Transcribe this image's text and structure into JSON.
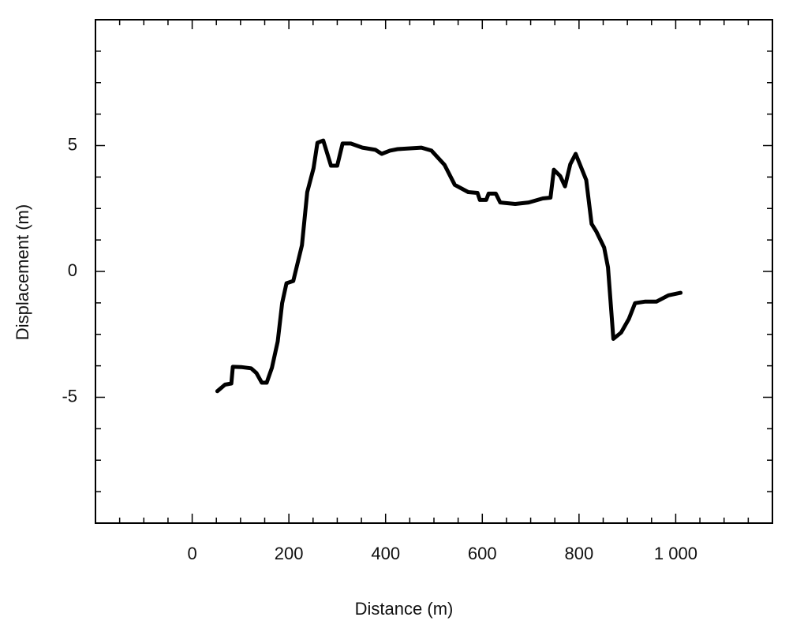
{
  "chart_data": {
    "type": "line",
    "x_label": "Distance (m)",
    "y_label": "Displacement (m)",
    "xlim": [
      -200,
      1200
    ],
    "ylim": [
      -10,
      10
    ],
    "xticks": [
      0,
      200,
      400,
      600,
      800,
      {
        "value": 1000,
        "label": "1 000"
      }
    ],
    "yticks": [
      -5,
      0,
      5
    ],
    "x_minor_ticks": [
      -150,
      -100,
      -50,
      50,
      100,
      150,
      250,
      300,
      350,
      450,
      500,
      550,
      650,
      700,
      750,
      850,
      900,
      950,
      1050,
      1100,
      1150
    ],
    "y_minor_ticks": [
      -8.75,
      -7.5,
      -6.25,
      -3.75,
      -2.5,
      -1.25,
      1.25,
      2.5,
      3.75,
      6.25,
      7.5,
      8.75
    ],
    "grid": false,
    "series": [
      {
        "color": "#000000",
        "x": [
          52,
          68,
          81,
          84,
          101,
          122,
          133,
          144,
          154,
          165,
          177,
          186,
          195,
          209,
          227,
          238,
          251,
          259,
          271,
          287,
          300,
          311,
          328,
          352,
          379,
          392,
          409,
          425,
          474,
          495,
          522,
          543,
          571,
          590,
          595,
          608,
          613,
          628,
          637,
          668,
          696,
          725,
          741,
          748,
          761,
          771,
          782,
          793,
          815,
          826,
          836,
          852,
          860,
          871,
          887,
          903,
          916,
          936,
          960,
          985,
          1010
        ],
        "values": [
          -4.76,
          -4.5,
          -4.45,
          -3.79,
          -3.8,
          -3.85,
          -4.04,
          -4.42,
          -4.42,
          -3.82,
          -2.78,
          -1.26,
          -0.47,
          -0.38,
          1.04,
          3.15,
          4.1,
          5.11,
          5.2,
          4.2,
          4.2,
          5.08,
          5.08,
          4.92,
          4.83,
          4.67,
          4.8,
          4.86,
          4.92,
          4.8,
          4.23,
          3.44,
          3.15,
          3.12,
          2.84,
          2.84,
          3.09,
          3.09,
          2.74,
          2.68,
          2.74,
          2.9,
          2.93,
          4.04,
          3.79,
          3.38,
          4.26,
          4.67,
          3.63,
          1.89,
          1.58,
          0.95,
          0.16,
          -2.68,
          -2.43,
          -1.89,
          -1.26,
          -1.2,
          -1.2,
          -0.95,
          -0.85
        ]
      }
    ]
  }
}
